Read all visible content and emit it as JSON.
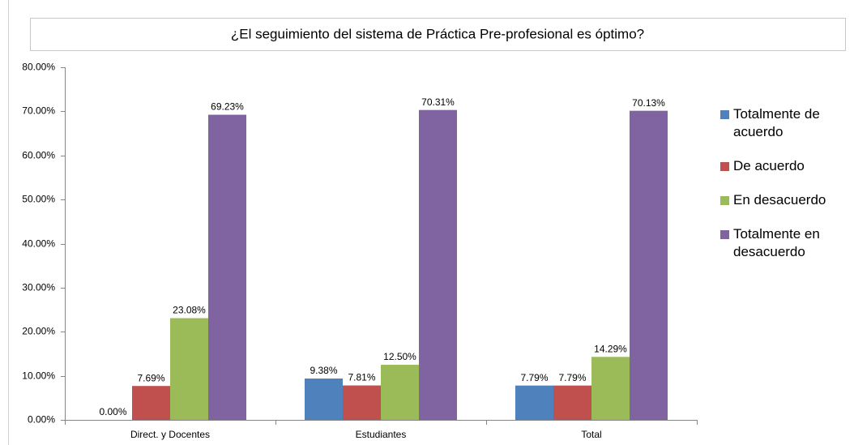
{
  "chart_data": {
    "type": "bar",
    "title": "¿El seguimiento del sistema de Práctica Pre-profesional es óptimo?",
    "categories": [
      "Direct. y Docentes",
      "Estudiantes",
      "Total"
    ],
    "series": [
      {
        "name": "Totalmente de acuerdo",
        "color": "#4f81bd",
        "values": [
          0,
          9.38,
          7.79
        ],
        "value_labels": [
          "0.00%",
          "9.38%",
          "7.79%"
        ]
      },
      {
        "name": "De acuerdo",
        "color": "#c0504d",
        "values": [
          7.69,
          7.81,
          7.79
        ],
        "value_labels": [
          "7.69%",
          "7.81%",
          "7.79%"
        ]
      },
      {
        "name": "En desacuerdo",
        "color": "#9bbb59",
        "values": [
          23.08,
          12.5,
          14.29
        ],
        "value_labels": [
          "23.08%",
          "12.50%",
          "14.29%"
        ]
      },
      {
        "name": "Totalmente en desacuerdo",
        "color": "#8064a2",
        "values": [
          69.23,
          70.31,
          70.13
        ],
        "value_labels": [
          "69.23%",
          "70.31%",
          "70.13%"
        ]
      }
    ],
    "ylim": [
      0,
      80
    ],
    "yticks": [
      {
        "value": 0,
        "label": "0.00%"
      },
      {
        "value": 10,
        "label": "10.00%"
      },
      {
        "value": 20,
        "label": "20.00%"
      },
      {
        "value": 30,
        "label": "30.00%"
      },
      {
        "value": 40,
        "label": "40.00%"
      },
      {
        "value": 50,
        "label": "50.00%"
      },
      {
        "value": 60,
        "label": "60.00%"
      },
      {
        "value": 70,
        "label": "70.00%"
      },
      {
        "value": 80,
        "label": "80.00%"
      }
    ],
    "grid": false,
    "legend": "right"
  }
}
